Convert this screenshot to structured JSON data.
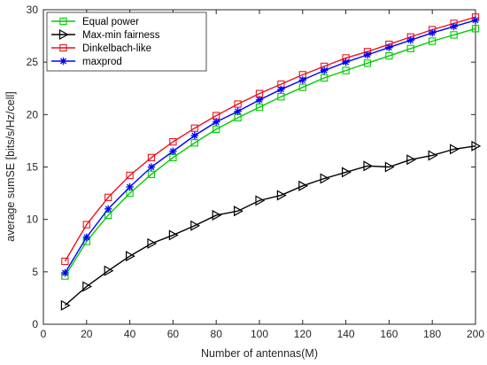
{
  "chart_data": {
    "type": "line",
    "title": "",
    "xlabel": "Number of antennas(M)",
    "ylabel": "average sumSE [bits/s/Hz/cell]",
    "xlim": [
      0,
      200
    ],
    "ylim": [
      0,
      30
    ],
    "xticks": [
      0,
      20,
      40,
      60,
      80,
      100,
      120,
      140,
      160,
      180,
      200
    ],
    "yticks": [
      0,
      5,
      10,
      15,
      20,
      25,
      30
    ],
    "grid": false,
    "legend_position": "top-left",
    "x": [
      10,
      20,
      30,
      40,
      50,
      60,
      70,
      80,
      90,
      100,
      110,
      120,
      130,
      140,
      150,
      160,
      170,
      180,
      190,
      200
    ],
    "series": [
      {
        "name": "Equal power",
        "color": "#00cc00",
        "marker": "square",
        "values": [
          4.6,
          7.9,
          10.4,
          12.5,
          14.3,
          15.9,
          17.3,
          18.6,
          19.7,
          20.7,
          21.7,
          22.6,
          23.5,
          24.2,
          24.9,
          25.6,
          26.3,
          27.0,
          27.6,
          28.2
        ]
      },
      {
        "name": "Max-min fairness",
        "color": "#000000",
        "marker": "triangle-right",
        "values": [
          1.8,
          3.6,
          5.1,
          6.5,
          7.7,
          8.5,
          9.4,
          10.4,
          10.8,
          11.8,
          12.3,
          13.2,
          13.9,
          14.5,
          15.1,
          15.0,
          15.7,
          16.1,
          16.7,
          17.0
        ]
      },
      {
        "name": "Dinkelbach-like",
        "color": "#e8141c",
        "marker": "square",
        "values": [
          6.0,
          9.5,
          12.1,
          14.2,
          15.9,
          17.4,
          18.7,
          19.9,
          21.0,
          22.0,
          22.9,
          23.8,
          24.6,
          25.4,
          26.0,
          26.7,
          27.4,
          28.1,
          28.7,
          29.3
        ]
      },
      {
        "name": "maxprod",
        "color": "#0000ff",
        "marker": "asterisk",
        "values": [
          4.9,
          8.3,
          11.0,
          13.1,
          15.0,
          16.5,
          18.0,
          19.3,
          20.3,
          21.4,
          22.4,
          23.3,
          24.2,
          25.0,
          25.7,
          26.4,
          27.1,
          27.8,
          28.4,
          29.0
        ]
      }
    ]
  }
}
